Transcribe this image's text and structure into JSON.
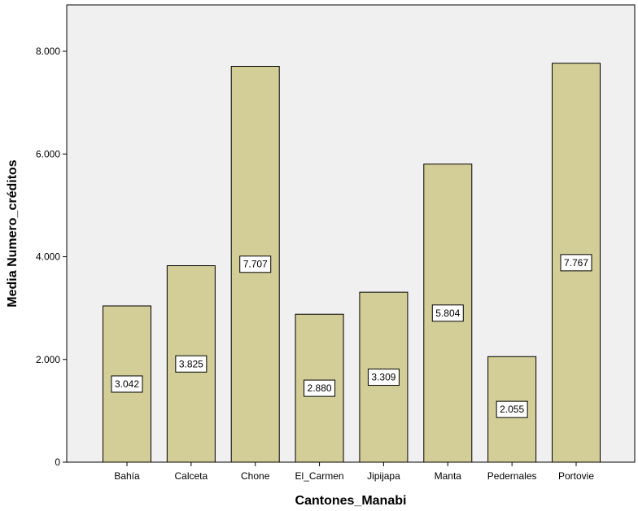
{
  "chart_data": {
    "type": "bar",
    "categories": [
      "Bahía",
      "Calceta",
      "Chone",
      "El_Carmen",
      "Jipijapa",
      "Manta",
      "Pedernales",
      "Portovie"
    ],
    "values": [
      3042,
      3825,
      7707,
      2880,
      3309,
      5804,
      2055,
      7767
    ],
    "data_labels": [
      "3.042",
      "3.825",
      "7.707",
      "2.880",
      "3.309",
      "5.804",
      "2.055",
      "7.767"
    ],
    "xlabel": "Cantones_Manabi",
    "ylabel": "Media Numero_créditos",
    "ylim": [
      0,
      8000
    ],
    "yticks": [
      0,
      2000,
      4000,
      6000,
      8000
    ],
    "ytick_labels": [
      "0",
      "2.000",
      "4.000",
      "6.000",
      "8.000"
    ],
    "grid": false,
    "colors": {
      "plot_background": "#f0f0f0",
      "bar_fill": "#d3ce97",
      "bar_stroke": "#000000"
    }
  }
}
